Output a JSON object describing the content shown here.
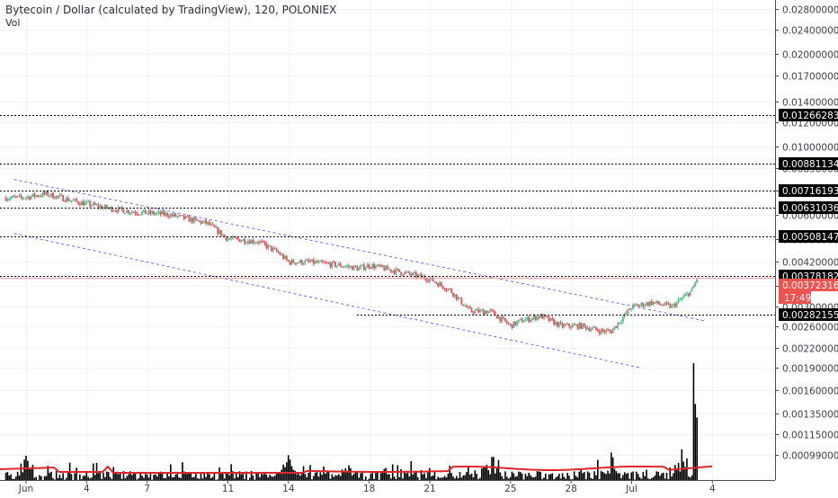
{
  "header": {
    "title": "Bytecoin / Dollar (calculated by TradingView), 120, POLONIEX",
    "volume_label": "Vol"
  },
  "chart_data": {
    "type": "candlestick",
    "title": "Bytecoin / Dollar (calculated by TradingView), 120, POLONIEX",
    "y_scale": "log",
    "ylim": [
      0.00084,
      0.03
    ],
    "grid": true,
    "y_ticks": [
      0.028,
      0.024,
      0.02,
      0.017,
      0.014,
      0.012,
      0.01,
      0.0085,
      0.0072,
      0.006,
      0.005,
      0.0042,
      0.0035,
      0.003,
      0.0026,
      0.0022,
      0.0019,
      0.0016,
      0.00135,
      0.00115,
      0.00099
    ],
    "y_tick_labels": [
      "0.02800000",
      "0.02400000",
      "0.02000000",
      "0.01700000",
      "0.01400000",
      "0.01200000",
      "0.01000000",
      "0.00850000",
      "0.00720000",
      "0.00600000",
      "0.00500000",
      "0.00420000",
      "0.00350000",
      "0.00300000",
      "0.00260000",
      "0.00220000",
      "0.00190000",
      "0.00160000",
      "0.00135000",
      "0.00115000",
      "0.00099000"
    ],
    "x_ticks": [
      "Jun",
      "4",
      "7",
      "11",
      "14",
      "18",
      "21",
      "25",
      "28",
      "Jul",
      "4"
    ],
    "x_tick_days": [
      1,
      4,
      7,
      11,
      14,
      18,
      21,
      25,
      28,
      31,
      35
    ],
    "horizontal_levels": [
      {
        "label": "0.01266283",
        "value": 0.01266283
      },
      {
        "label": "0.00881134",
        "value": 0.00881134
      },
      {
        "label": "0.00716193",
        "value": 0.00716193
      },
      {
        "label": "0.00631036",
        "value": 0.00631036
      },
      {
        "label": "0.00508147",
        "value": 0.00508147
      },
      {
        "label": "0.00378182",
        "value": 0.00378182
      },
      {
        "label": "0.00282155",
        "value": 0.00282155
      }
    ],
    "current_price": {
      "label": "0.00372316",
      "value": 0.00372316,
      "countdown": "17:49"
    },
    "channel": {
      "upper": [
        [
          0.4,
          0.0078
        ],
        [
          34.6,
          0.0027
        ]
      ],
      "lower": [
        [
          0.4,
          0.0052
        ],
        [
          31.4,
          0.0019
        ]
      ]
    },
    "series": [
      {
        "type": "candle",
        "points": [
          [
            0.8,
            0.0068
          ],
          [
            2.0,
            0.007
          ],
          [
            3.5,
            0.0066
          ],
          [
            5.0,
            0.0063
          ],
          [
            6.5,
            0.0061
          ],
          [
            8.0,
            0.006
          ],
          [
            9.5,
            0.0057
          ],
          [
            10.0,
            0.0056
          ],
          [
            11.0,
            0.005
          ],
          [
            12.5,
            0.0049
          ],
          [
            13.5,
            0.0045
          ],
          [
            14.0,
            0.0042
          ],
          [
            15.0,
            0.0042
          ],
          [
            16.5,
            0.0041
          ],
          [
            17.5,
            0.004
          ],
          [
            18.0,
            0.0041
          ],
          [
            19.5,
            0.0039
          ],
          [
            21.0,
            0.0037
          ],
          [
            22.0,
            0.0034
          ],
          [
            23.0,
            0.0029
          ],
          [
            24.0,
            0.0029
          ],
          [
            25.0,
            0.0026
          ],
          [
            25.5,
            0.0027
          ],
          [
            26.5,
            0.0028
          ],
          [
            27.5,
            0.0026
          ],
          [
            28.5,
            0.0026
          ],
          [
            29.5,
            0.0025
          ],
          [
            30.0,
            0.0025
          ],
          [
            31.0,
            0.003
          ],
          [
            32.0,
            0.0031
          ],
          [
            33.0,
            0.003
          ],
          [
            34.0,
            0.0034
          ],
          [
            34.3,
            0.0038
          ]
        ]
      },
      {
        "type": "volume",
        "name": "Vol",
        "spike_days": [
          1,
          14,
          24,
          30,
          33.5
        ]
      }
    ]
  }
}
